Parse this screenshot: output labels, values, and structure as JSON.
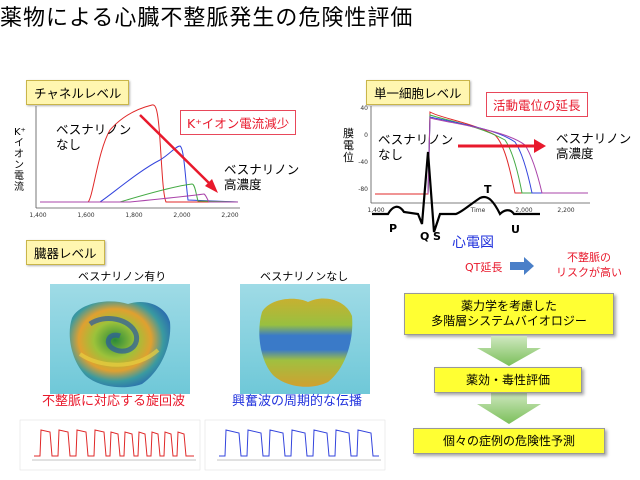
{
  "title": "薬物による心臓不整脈発生の危険性評価",
  "channel": {
    "tag": "チャネルレベル",
    "effect_label": "K⁺イオン電流減少",
    "without_drug": "ベスナリノン\nなし",
    "with_drug": "ベスナリノン\n高濃度",
    "ylabel": "K⁺イオン電流",
    "ticks": [
      "1,400",
      "1,600",
      "1,800",
      "2,000",
      "2,200"
    ]
  },
  "cell": {
    "tag": "単一細胞レベル",
    "effect_label": "活動電位の延長",
    "without_drug": "ベスナリノン\nなし",
    "with_drug": "ベスナリノン\n高濃度",
    "ylabel": "膜電位",
    "yticks": [
      "40",
      "0",
      "-40",
      "-80"
    ],
    "ticks": [
      "1,400",
      "Time",
      "2,000",
      "2,200"
    ]
  },
  "ecg": {
    "label": "心電図",
    "waves": [
      "P",
      "Q",
      "S",
      "T",
      "U"
    ],
    "qt_label": "QT延長",
    "risk_label": "不整脈の\nリスクが高い"
  },
  "organ": {
    "tag": "臓器レベル",
    "with_drug": "ベスナリノン有り",
    "without_drug": "ベスナリノンなし",
    "arrhythmia_caption": "不整脈に対応する旋回波",
    "normal_caption": "興奮波の周期的な伝播"
  },
  "flow": {
    "box1": "薬力学を考慮した\n多階層システムバイオロジー",
    "box2": "薬効・毒性評価",
    "box3": "個々の症例の危険性予測"
  },
  "colors": {
    "red": "#e8192c",
    "blue": "#2233dd",
    "tag_bg": "#fff6b0",
    "flow_box": "#ffff33",
    "flow_arrow": "#8cc66e"
  }
}
